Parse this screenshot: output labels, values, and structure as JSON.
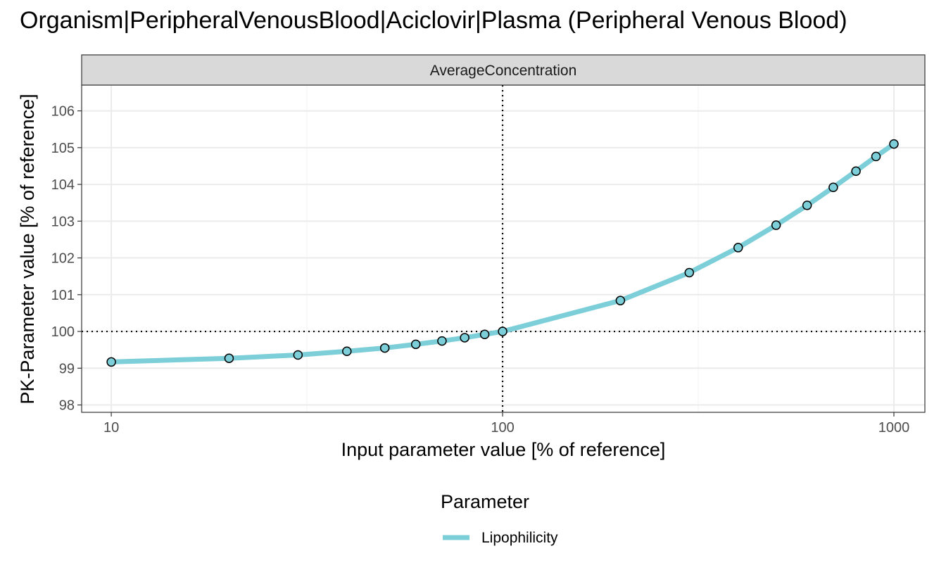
{
  "chart_data": {
    "type": "line",
    "title": "Organism|PeripheralVenousBlood|Aciclovir|Plasma (Peripheral Venous Blood)",
    "facet_label": "AverageConcentration",
    "xlabel": "Input parameter value [% of reference]",
    "ylabel": "PK-Parameter value [% of reference]",
    "x_scale": "log10",
    "xlim": [
      8.4,
      1200
    ],
    "ylim": [
      97.8,
      106.7
    ],
    "x_ticks": [
      10,
      100,
      1000
    ],
    "x_tick_labels": [
      "10",
      "100",
      "1000"
    ],
    "y_ticks": [
      98,
      99,
      100,
      101,
      102,
      103,
      104,
      105,
      106
    ],
    "y_tick_labels": [
      "98",
      "99",
      "100",
      "101",
      "102",
      "103",
      "104",
      "105",
      "106"
    ],
    "reference_lines": {
      "x": 100,
      "y": 100,
      "style": "dotted"
    },
    "grid": true,
    "legend_title": "Parameter",
    "legend_position": "bottom",
    "series": [
      {
        "name": "Lipophilicity",
        "color": "#7ccfd8",
        "marker": "open-circle",
        "x": [
          10,
          20,
          30,
          40,
          50,
          60,
          70,
          80,
          90,
          100,
          200,
          300,
          400,
          500,
          600,
          700,
          800,
          900,
          1000
        ],
        "y": [
          99.17,
          99.27,
          99.36,
          99.46,
          99.55,
          99.65,
          99.74,
          99.83,
          99.92,
          100.0,
          100.84,
          101.6,
          102.28,
          102.89,
          103.43,
          103.92,
          104.36,
          104.76,
          105.1
        ]
      }
    ]
  }
}
